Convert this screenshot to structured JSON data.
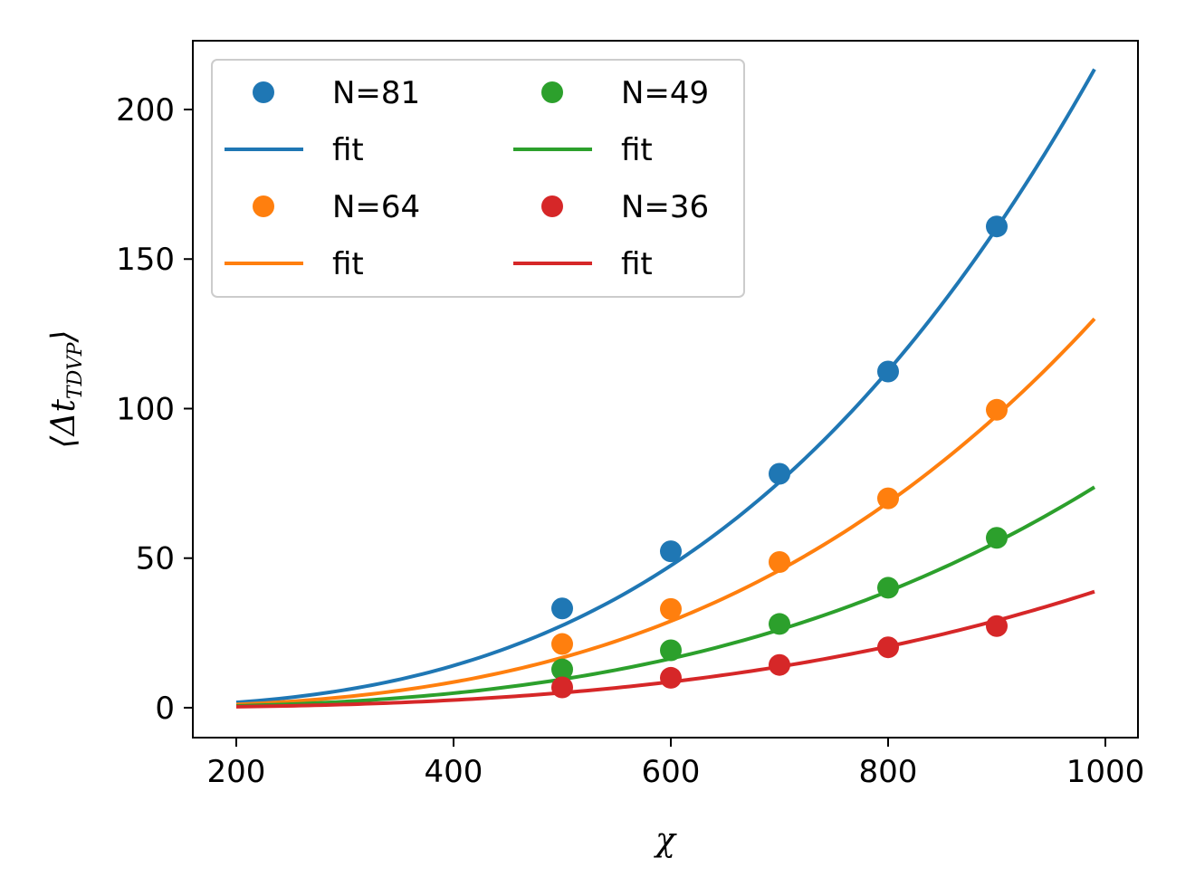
{
  "chart_data": {
    "type": "scatter",
    "xlabel": "χ",
    "ylabel": "⟨Δt_TDVP⟩",
    "xlim": [
      160,
      1030
    ],
    "ylim": [
      -10,
      223
    ],
    "xticks": [
      200,
      400,
      600,
      800,
      1000
    ],
    "yticks": [
      0,
      50,
      100,
      150,
      200
    ],
    "grid": false,
    "legend_position": "top-left",
    "legend_columns": 2,
    "fit_x_range": [
      200,
      990
    ],
    "series": [
      {
        "name": "N=81",
        "fit_label": "fit",
        "color": "#1f77b4",
        "x": [
          500,
          600,
          700,
          800,
          900
        ],
        "y": [
          33.2,
          52.3,
          78.2,
          112.4,
          160.9
        ],
        "fit_coef": 2.2e-07,
        "fit_exp": 3.0
      },
      {
        "name": "N=64",
        "fit_label": "fit",
        "color": "#ff7f0e",
        "x": [
          500,
          600,
          700,
          800,
          900
        ],
        "y": [
          21.3,
          33.0,
          48.7,
          70.0,
          99.6
        ],
        "fit_coef": 1.34e-07,
        "fit_exp": 3.0
      },
      {
        "name": "N=49",
        "fit_label": "fit",
        "color": "#2ca02c",
        "x": [
          500,
          600,
          700,
          800,
          900
        ],
        "y": [
          12.8,
          19.2,
          28.0,
          40.1,
          56.8
        ],
        "fit_coef": 7.6e-08,
        "fit_exp": 3.0
      },
      {
        "name": "N=36",
        "fit_label": "fit",
        "color": "#d62728",
        "x": [
          500,
          600,
          700,
          800,
          900
        ],
        "y": [
          6.8,
          10.0,
          14.3,
          20.2,
          27.3
        ],
        "fit_coef": 4e-08,
        "fit_exp": 3.0
      }
    ]
  }
}
